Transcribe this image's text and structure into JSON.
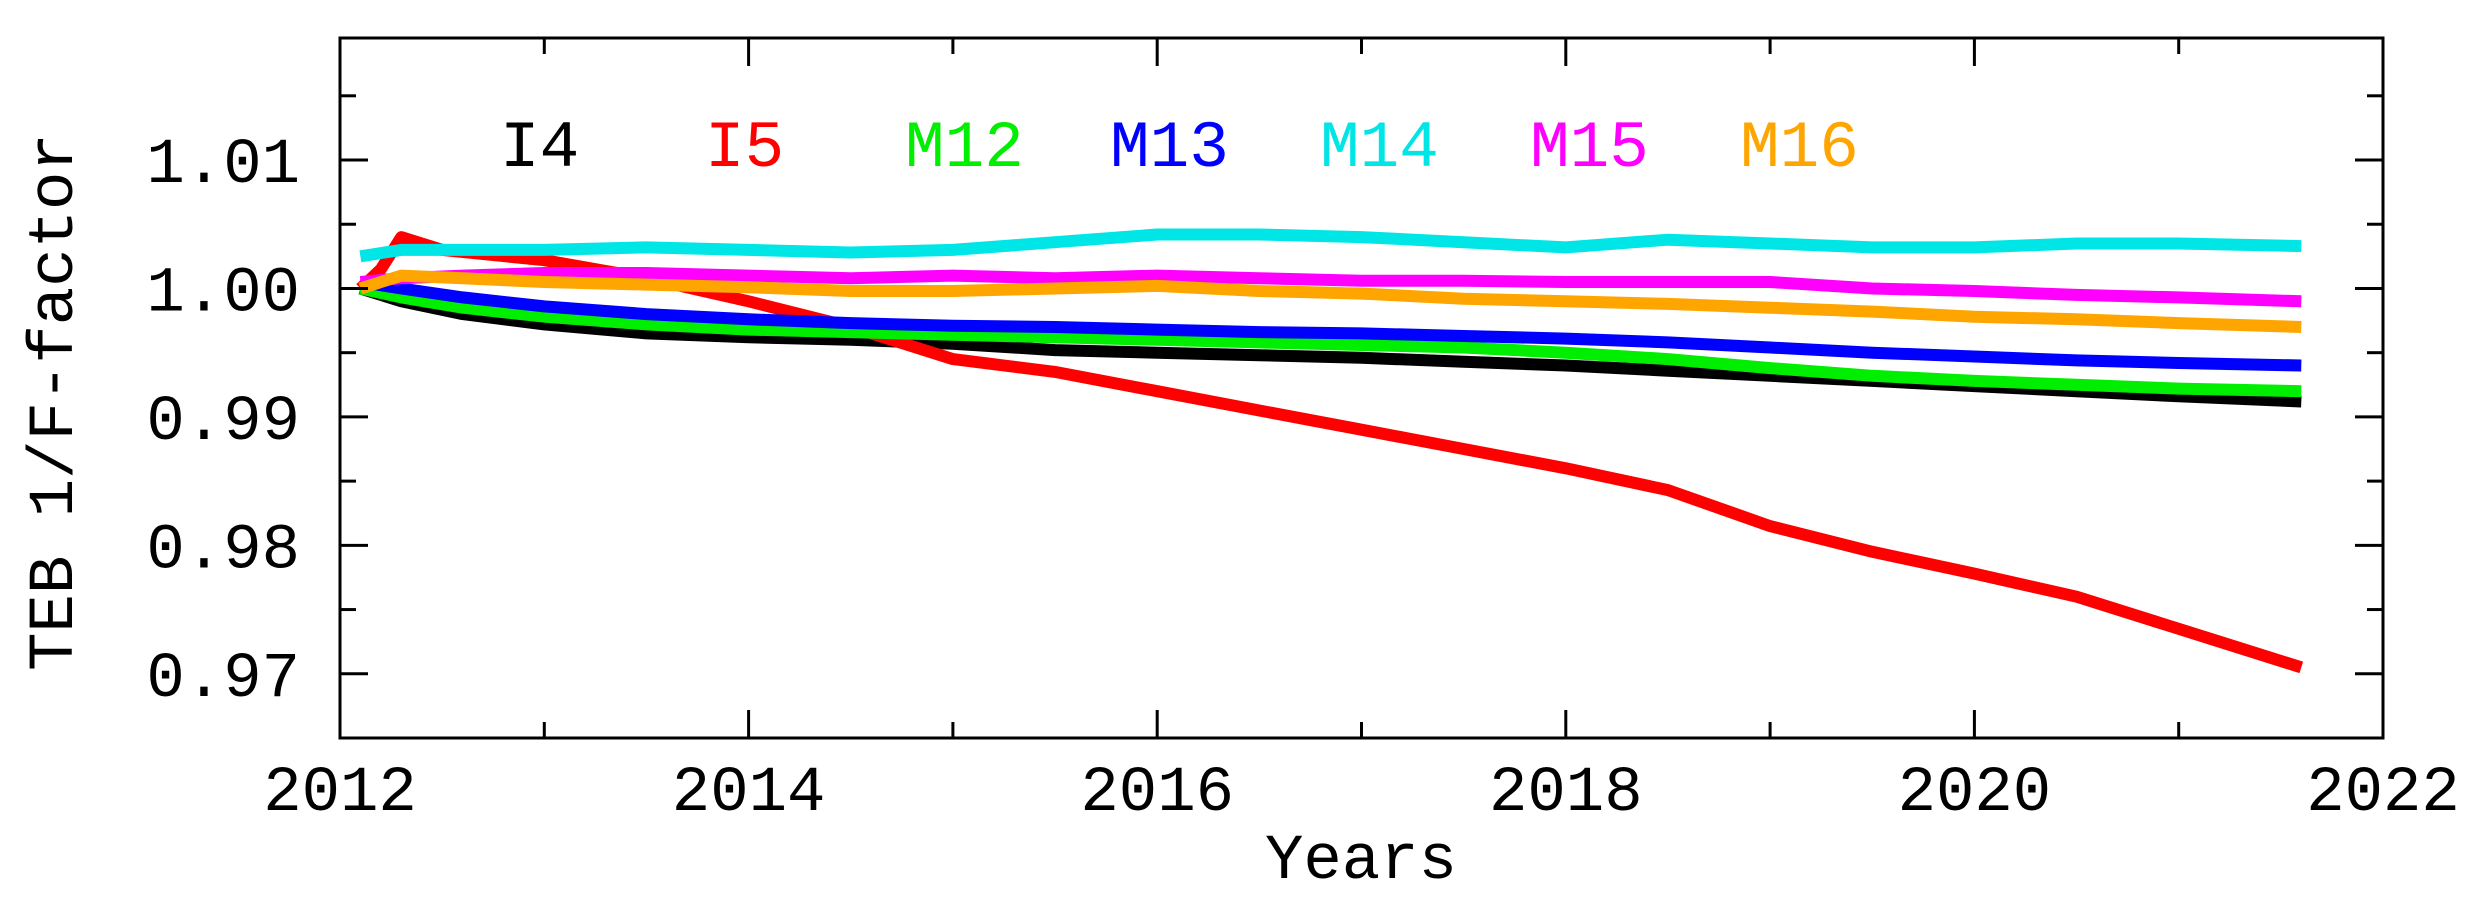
{
  "chart_data": {
    "type": "line",
    "title": "",
    "xlabel": "Years",
    "ylabel": "TEB 1/F-factor",
    "xlim": [
      2012,
      2022
    ],
    "ylim": [
      0.965,
      1.0195
    ],
    "xticks": [
      2012,
      2014,
      2016,
      2018,
      2020,
      2022
    ],
    "xtick_labels": [
      "2012",
      "2014",
      "2016",
      "2018",
      "2020",
      "2022"
    ],
    "yticks": [
      0.97,
      0.98,
      0.99,
      1.0,
      1.01
    ],
    "ytick_labels": [
      "0.97",
      "0.98",
      "0.99",
      "1.00",
      "1.01"
    ],
    "grid": false,
    "legend_position": "top-left",
    "series": [
      {
        "name": "I4",
        "color": "#000000",
        "x": [
          2012.1,
          2012.3,
          2012.6,
          2013.0,
          2013.5,
          2014.0,
          2014.5,
          2015.0,
          2015.5,
          2016.0,
          2016.5,
          2017.0,
          2017.5,
          2018.0,
          2018.5,
          2019.0,
          2019.5,
          2020.0,
          2020.5,
          2021.0,
          2021.6
        ],
        "y": [
          1.0,
          0.999,
          0.998,
          0.9972,
          0.9965,
          0.9962,
          0.996,
          0.9957,
          0.9952,
          0.995,
          0.9948,
          0.9946,
          0.9943,
          0.994,
          0.9936,
          0.9932,
          0.9928,
          0.9924,
          0.992,
          0.9916,
          0.9912
        ]
      },
      {
        "name": "I5",
        "color": "#ff0000",
        "x": [
          2012.1,
          2012.2,
          2012.3,
          2012.5,
          2013.0,
          2013.5,
          2014.0,
          2014.5,
          2015.0,
          2015.5,
          2016.0,
          2016.5,
          2017.0,
          2017.5,
          2018.0,
          2018.5,
          2019.0,
          2019.5,
          2020.0,
          2020.5,
          2021.0,
          2021.6
        ],
        "y": [
          1.0,
          1.0015,
          1.004,
          1.003,
          1.0022,
          1.0008,
          0.999,
          0.997,
          0.9945,
          0.9935,
          0.992,
          0.9905,
          0.989,
          0.9875,
          0.986,
          0.9843,
          0.9815,
          0.9795,
          0.9778,
          0.976,
          0.9735,
          0.9705
        ]
      },
      {
        "name": "M12",
        "color": "#00ee00",
        "x": [
          2012.1,
          2012.3,
          2012.6,
          2013.0,
          2013.5,
          2014.0,
          2014.5,
          2015.0,
          2015.5,
          2016.0,
          2016.5,
          2017.0,
          2017.5,
          2018.0,
          2018.5,
          2019.0,
          2019.5,
          2020.0,
          2020.5,
          2021.0,
          2021.6
        ],
        "y": [
          1.0,
          0.9993,
          0.9985,
          0.9978,
          0.9972,
          0.9968,
          0.9966,
          0.9964,
          0.9962,
          0.996,
          0.9958,
          0.9956,
          0.9954,
          0.995,
          0.9945,
          0.9938,
          0.9932,
          0.9928,
          0.9925,
          0.9922,
          0.992
        ]
      },
      {
        "name": "M13",
        "color": "#0000ff",
        "x": [
          2012.1,
          2012.3,
          2012.6,
          2013.0,
          2013.5,
          2014.0,
          2014.5,
          2015.0,
          2015.5,
          2016.0,
          2016.5,
          2017.0,
          2017.5,
          2018.0,
          2018.5,
          2019.0,
          2019.5,
          2020.0,
          2020.5,
          2021.0,
          2021.6
        ],
        "y": [
          1.0005,
          1.0,
          0.9993,
          0.9986,
          0.998,
          0.9976,
          0.9973,
          0.9971,
          0.997,
          0.9968,
          0.9966,
          0.9965,
          0.9963,
          0.9961,
          0.9958,
          0.9954,
          0.995,
          0.9947,
          0.9944,
          0.9942,
          0.994
        ]
      },
      {
        "name": "M14",
        "color": "#00e5e5",
        "x": [
          2012.1,
          2012.3,
          2012.6,
          2013.0,
          2013.5,
          2014.0,
          2014.5,
          2015.0,
          2015.5,
          2016.0,
          2016.5,
          2017.0,
          2017.5,
          2018.0,
          2018.5,
          2019.0,
          2019.5,
          2020.0,
          2020.5,
          2021.0,
          2021.6
        ],
        "y": [
          1.0025,
          1.003,
          1.003,
          1.003,
          1.0032,
          1.003,
          1.0028,
          1.003,
          1.0036,
          1.0042,
          1.0042,
          1.004,
          1.0036,
          1.0032,
          1.0038,
          1.0035,
          1.0032,
          1.0032,
          1.0035,
          1.0035,
          1.0033
        ]
      },
      {
        "name": "M15",
        "color": "#ff00ff",
        "x": [
          2012.1,
          2012.3,
          2012.6,
          2013.0,
          2013.5,
          2014.0,
          2014.5,
          2015.0,
          2015.5,
          2016.0,
          2016.5,
          2017.0,
          2017.5,
          2018.0,
          2018.5,
          2019.0,
          2019.5,
          2020.0,
          2020.5,
          2021.0,
          2021.6
        ],
        "y": [
          1.0005,
          1.0008,
          1.001,
          1.0012,
          1.0012,
          1.001,
          1.0008,
          1.001,
          1.0008,
          1.001,
          1.0008,
          1.0006,
          1.0006,
          1.0005,
          1.0005,
          1.0005,
          1.0,
          0.9998,
          0.9995,
          0.9993,
          0.999
        ]
      },
      {
        "name": "M16",
        "color": "#ffa500",
        "x": [
          2012.1,
          2012.3,
          2012.6,
          2013.0,
          2013.5,
          2014.0,
          2014.5,
          2015.0,
          2015.5,
          2016.0,
          2016.5,
          2017.0,
          2017.5,
          2018.0,
          2018.5,
          2019.0,
          2019.5,
          2020.0,
          2020.5,
          2021.0,
          2021.6
        ],
        "y": [
          1.0,
          1.001,
          1.0008,
          1.0005,
          1.0003,
          1.0001,
          0.9998,
          0.9998,
          1.0,
          1.0002,
          0.9998,
          0.9996,
          0.9992,
          0.999,
          0.9988,
          0.9985,
          0.9982,
          0.9978,
          0.9976,
          0.9973,
          0.997
        ]
      }
    ]
  }
}
